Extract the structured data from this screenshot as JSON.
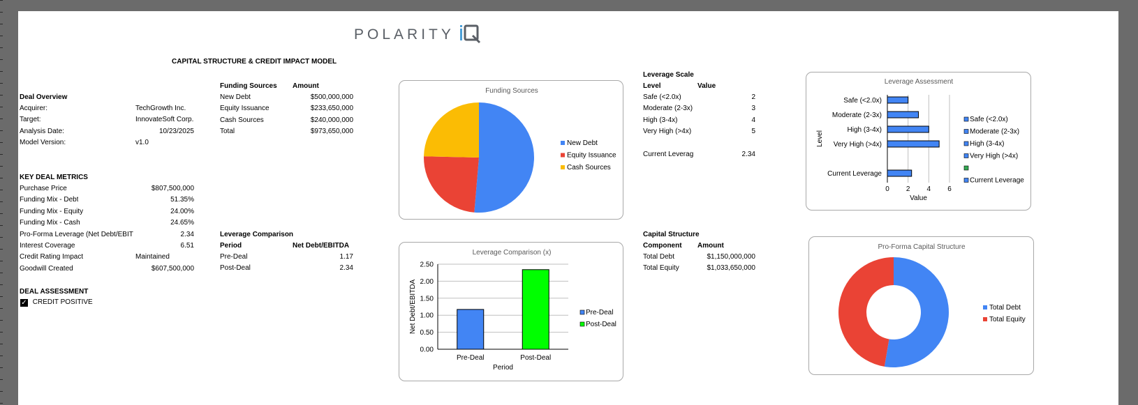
{
  "logo": {
    "text": "POLARITY",
    "mark": "iQ"
  },
  "title": "CAPITAL STRUCTURE & CREDIT IMPACT MODEL",
  "deal_overview": {
    "heading": "Deal Overview",
    "rows": [
      {
        "label": "Acquirer:",
        "value": "TechGrowth Inc."
      },
      {
        "label": "Target:",
        "value": "InnovateSoft Corp."
      },
      {
        "label": "Analysis Date:",
        "value": "10/23/2025"
      },
      {
        "label": "Model Version:",
        "value": "v1.0"
      }
    ]
  },
  "key_metrics": {
    "heading": "KEY DEAL METRICS",
    "rows": [
      {
        "label": "Purchase Price",
        "value": "$807,500,000"
      },
      {
        "label": "Funding Mix - Debt",
        "value": "51.35%"
      },
      {
        "label": "Funding Mix - Equity",
        "value": "24.00%"
      },
      {
        "label": "Funding Mix - Cash",
        "value": "24.65%"
      },
      {
        "label": "Pro-Forma Leverage (Net Debt/EBIT",
        "value": "2.34"
      },
      {
        "label": "Interest Coverage",
        "value": "6.51"
      },
      {
        "label": "Credit Rating Impact",
        "value": "Maintained"
      },
      {
        "label": "Goodwill Created",
        "value": "$607,500,000"
      }
    ]
  },
  "deal_assessment": {
    "heading": "DEAL ASSESSMENT",
    "status": "CREDIT POSITIVE",
    "checked": true
  },
  "funding_sources": {
    "col1": "Funding Sources",
    "col2": "Amount",
    "rows": [
      {
        "label": "New Debt",
        "value": "$500,000,000"
      },
      {
        "label": "Equity Issuance",
        "value": "$233,650,000"
      },
      {
        "label": "Cash Sources",
        "value": "$240,000,000"
      },
      {
        "label": "Total",
        "value": "$973,650,000"
      }
    ]
  },
  "leverage_comparison": {
    "heading": "Leverage Comparison",
    "col1": "Period",
    "col2": "Net Debt/EBITDA",
    "rows": [
      {
        "label": "Pre-Deal",
        "value": "1.17"
      },
      {
        "label": "Post-Deal",
        "value": "2.34"
      }
    ]
  },
  "leverage_scale": {
    "heading": "Leverage Scale",
    "col1": "Level",
    "col2": "Value",
    "rows": [
      {
        "label": "Safe (<2.0x)",
        "value": "2"
      },
      {
        "label": "Moderate (2-3x)",
        "value": "3"
      },
      {
        "label": "High (3-4x)",
        "value": "4"
      },
      {
        "label": "Very High (>4x)",
        "value": "5"
      }
    ],
    "current_label": "Current Leverag",
    "current_value": "2.34"
  },
  "capital_structure": {
    "heading": "Capital Structure",
    "col1": "Component",
    "col2": "Amount",
    "rows": [
      {
        "label": "Total Debt",
        "value": "$1,150,000,000"
      },
      {
        "label": "Total Equity",
        "value": "$1,033,650,000"
      }
    ]
  },
  "colors": {
    "blue": "#4285f4",
    "red": "#ea4335",
    "yellow": "#fbbc04",
    "green": "#00ff00",
    "green_legend": "#34a853"
  },
  "chart_data": [
    {
      "type": "pie",
      "title": "Funding Sources",
      "categories": [
        "New Debt",
        "Equity Issuance",
        "Cash Sources"
      ],
      "values": [
        500000000,
        233650000,
        240000000
      ],
      "legend": "right"
    },
    {
      "type": "bar",
      "title": "Leverage Comparison (x)",
      "categories": [
        "Pre-Deal",
        "Post-Deal"
      ],
      "series": [
        {
          "name": "Pre-Deal",
          "values": [
            1.17,
            null
          ]
        },
        {
          "name": "Post-Deal",
          "values": [
            null,
            2.34
          ]
        }
      ],
      "xlabel": "Period",
      "ylabel": "Net Debt/EBITDA",
      "ylim": [
        0,
        2.5
      ],
      "yticks": [
        "0.00",
        "0.50",
        "1.00",
        "1.50",
        "2.00",
        "2.50"
      ],
      "grid": true,
      "legend": "right"
    },
    {
      "type": "bar",
      "orientation": "horizontal",
      "title": "Leverage Assessment",
      "categories": [
        "Safe (<2.0x)",
        "Moderate (2-3x)",
        "High (3-4x)",
        "Very High (>4x)",
        "",
        "Current Leverage"
      ],
      "values": [
        2,
        3,
        4,
        5,
        null,
        2.34
      ],
      "legend_entries": [
        "Safe (<2.0x)",
        "Moderate (2-3x)",
        "High (3-4x)",
        "Very High (>4x)",
        "",
        "Current Leverage"
      ],
      "xlabel": "Value",
      "ylabel": "Level",
      "xlim": [
        0,
        6
      ],
      "xticks": [
        "0",
        "2",
        "4",
        "6"
      ],
      "grid": true,
      "legend": "right"
    },
    {
      "type": "pie",
      "variant": "donut",
      "title": "Pro-Forma Capital Structure",
      "categories": [
        "Total Debt",
        "Total Equity"
      ],
      "values": [
        1150000000,
        1033650000
      ],
      "legend": "right"
    }
  ]
}
